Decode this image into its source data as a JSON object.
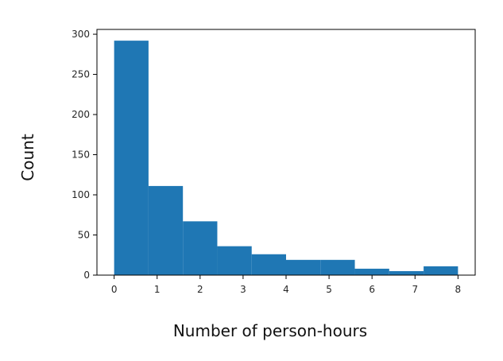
{
  "chart_data": {
    "type": "bar",
    "title": "",
    "xlabel": "Number of person-hours",
    "ylabel": "Count",
    "xlim": [
      -0.4,
      8.4
    ],
    "ylim": [
      0,
      306
    ],
    "x_ticks": [
      0,
      1,
      2,
      3,
      4,
      5,
      6,
      7,
      8
    ],
    "y_ticks": [
      0,
      50,
      100,
      150,
      200,
      250,
      300
    ],
    "bins": [
      {
        "x0": 0.0,
        "x1": 0.8,
        "count": 292
      },
      {
        "x0": 0.8,
        "x1": 1.6,
        "count": 111
      },
      {
        "x0": 1.6,
        "x1": 2.4,
        "count": 67
      },
      {
        "x0": 2.4,
        "x1": 3.2,
        "count": 36
      },
      {
        "x0": 3.2,
        "x1": 4.0,
        "count": 26
      },
      {
        "x0": 4.0,
        "x1": 4.8,
        "count": 19
      },
      {
        "x0": 4.8,
        "x1": 5.6,
        "count": 19
      },
      {
        "x0": 5.6,
        "x1": 6.4,
        "count": 8
      },
      {
        "x0": 6.4,
        "x1": 7.2,
        "count": 5
      },
      {
        "x0": 7.2,
        "x1": 8.0,
        "count": 11
      }
    ],
    "grid": false,
    "legend": "none",
    "bar_color": "#1f77b4"
  }
}
